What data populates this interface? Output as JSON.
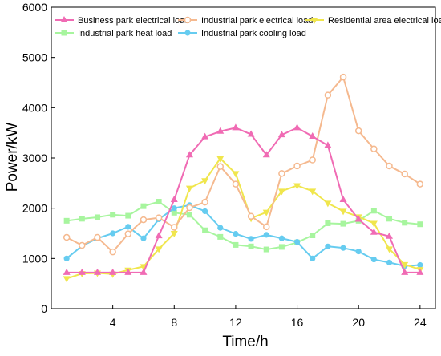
{
  "chart_data": {
    "type": "line",
    "title": "",
    "xlabel": "Time/h",
    "ylabel": "Power/kW",
    "xlim": [
      0,
      25
    ],
    "ylim": [
      0,
      6000
    ],
    "xticks": [
      4,
      8,
      12,
      16,
      20,
      24
    ],
    "yticks": [
      0,
      1000,
      2000,
      3000,
      4000,
      5000,
      6000
    ],
    "grid": false,
    "legend_position": "top",
    "x": [
      1,
      2,
      3,
      4,
      5,
      6,
      7,
      8,
      9,
      10,
      11,
      12,
      13,
      14,
      15,
      16,
      17,
      18,
      19,
      20,
      21,
      22,
      23,
      24
    ],
    "series": [
      {
        "name": "Business park electrical load",
        "color": "#f06bb4",
        "marker": "triangle-up",
        "values": [
          720,
          720,
          720,
          720,
          720,
          720,
          1450,
          2170,
          3060,
          3420,
          3530,
          3600,
          3470,
          3060,
          3460,
          3600,
          3430,
          3250,
          2170,
          1780,
          1520,
          1440,
          720,
          720
        ]
      },
      {
        "name": "Industrial park electrical load",
        "color": "#f5b98f",
        "marker": "circle-open",
        "values": [
          1420,
          1260,
          1420,
          1130,
          1490,
          1770,
          1810,
          1620,
          2010,
          2120,
          2830,
          2480,
          1840,
          1630,
          2690,
          2840,
          2960,
          4250,
          4610,
          3540,
          3180,
          2840,
          2680,
          2480
        ]
      },
      {
        "name": "Residential area electrical load",
        "color": "#f0e64d",
        "marker": "triangle-down",
        "values": [
          600,
          700,
          710,
          690,
          770,
          840,
          1190,
          1500,
          2400,
          2550,
          2990,
          2690,
          1800,
          1920,
          2340,
          2450,
          2340,
          2100,
          1940,
          1830,
          1700,
          1190,
          880,
          780
        ]
      },
      {
        "name": "Industrial park heat load",
        "color": "#a7f59e",
        "marker": "square",
        "values": [
          1750,
          1790,
          1820,
          1870,
          1850,
          2040,
          2130,
          1910,
          1870,
          1560,
          1430,
          1270,
          1240,
          1180,
          1230,
          1320,
          1460,
          1700,
          1690,
          1750,
          1950,
          1790,
          1710,
          1680
        ]
      },
      {
        "name": "Industrial park cooling load",
        "color": "#66ccf0",
        "marker": "circle",
        "values": [
          1000,
          1250,
          1400,
          1500,
          1630,
          1400,
          1780,
          2000,
          2060,
          1940,
          1610,
          1490,
          1390,
          1470,
          1400,
          1330,
          1000,
          1240,
          1210,
          1140,
          980,
          920,
          850,
          870
        ]
      }
    ]
  }
}
